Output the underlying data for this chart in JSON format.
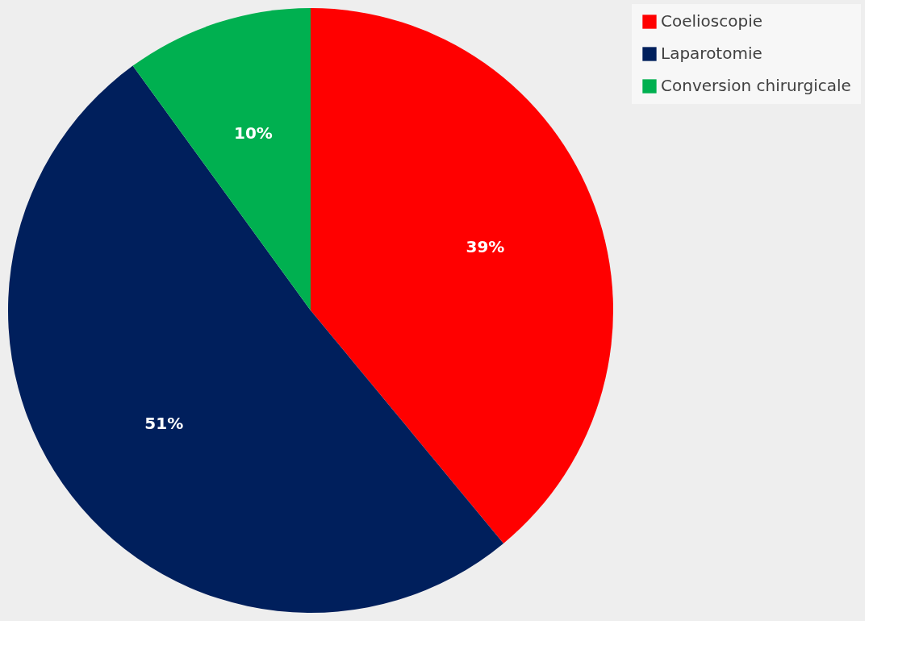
{
  "chart_data": {
    "type": "pie",
    "categories": [
      "Coelioscopie",
      "Laparotomie",
      "Conversion chirurgicale"
    ],
    "values": [
      39,
      51,
      10
    ],
    "colors": [
      "#ff0000",
      "#001f5c",
      "#00b050"
    ],
    "value_labels": [
      "39%",
      "51%",
      "10%"
    ],
    "legend": "right"
  }
}
